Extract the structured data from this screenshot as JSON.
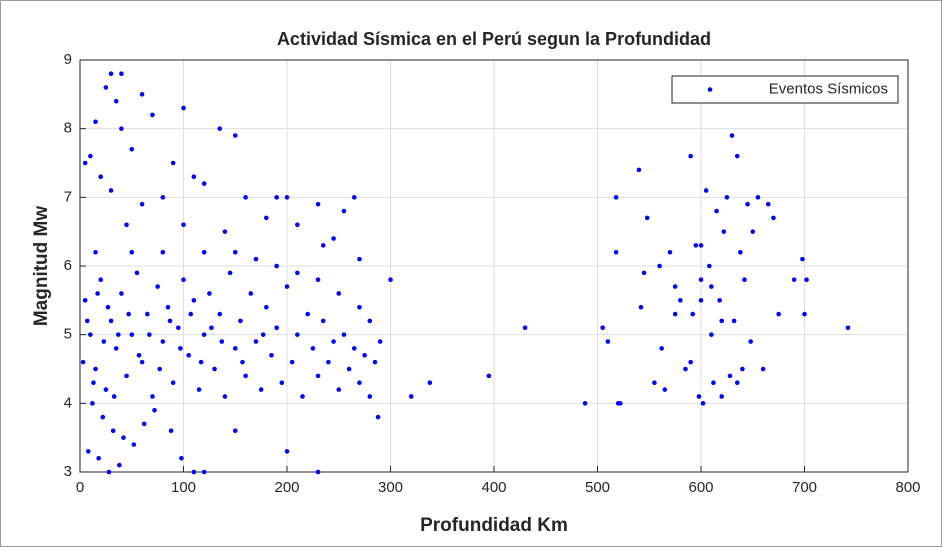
{
  "chart_data": {
    "type": "scatter",
    "title": "Actividad Sísmica en el Perú segun la Profundidad",
    "xlabel": "Profundidad Km",
    "ylabel": "Magnitud Mw",
    "xlim": [
      0,
      800
    ],
    "xticks": [
      0,
      100,
      200,
      300,
      400,
      500,
      600,
      700,
      800
    ],
    "ylim": [
      3,
      9
    ],
    "yticks": [
      3,
      4,
      5,
      6,
      7,
      8,
      9
    ],
    "grid": true,
    "legend": "northeast",
    "series": [
      {
        "name": "Eventos Sísmicos",
        "color": "#0000ff",
        "x": [
          30,
          40,
          25,
          35,
          60,
          100,
          15,
          40,
          135,
          150,
          10,
          50,
          70,
          90,
          120,
          5,
          20,
          80,
          110,
          160,
          190,
          200,
          265,
          255,
          230,
          180,
          140,
          60,
          30,
          45,
          100,
          210,
          245,
          235,
          270,
          300,
          15,
          50,
          80,
          120,
          150,
          170,
          190,
          210,
          230,
          250,
          270,
          280,
          290,
          285,
          5,
          10,
          15,
          20,
          25,
          30,
          35,
          40,
          45,
          50,
          55,
          60,
          65,
          70,
          75,
          80,
          85,
          90,
          95,
          100,
          105,
          110,
          115,
          120,
          125,
          130,
          135,
          140,
          145,
          150,
          155,
          160,
          165,
          170,
          175,
          180,
          185,
          190,
          195,
          200,
          205,
          210,
          215,
          220,
          225,
          230,
          235,
          240,
          245,
          250,
          255,
          260,
          265,
          270,
          275,
          280,
          12,
          22,
          32,
          42,
          8,
          18,
          28,
          38,
          52,
          62,
          72,
          88,
          98,
          110,
          120,
          150,
          200,
          230,
          288,
          320,
          338,
          395,
          430,
          488,
          3,
          7,
          13,
          17,
          23,
          27,
          33,
          37,
          47,
          57,
          67,
          77,
          87,
          97,
          107,
          117,
          127,
          137,
          157,
          177,
          505,
          510,
          518,
          518,
          520,
          522,
          540,
          542,
          545,
          548,
          555,
          560,
          562,
          565,
          570,
          575,
          580,
          585,
          590,
          592,
          595,
          598,
          600,
          602,
          605,
          608,
          610,
          612,
          615,
          618,
          620,
          622,
          625,
          628,
          630,
          632,
          635,
          638,
          640,
          642,
          645,
          648,
          650,
          655,
          660,
          665,
          670,
          675,
          690,
          698,
          700,
          702,
          742,
          600,
          590,
          610,
          620,
          635,
          575,
          600
        ],
        "values": [
          8.8,
          8.8,
          8.6,
          8.4,
          8.5,
          8.3,
          8.1,
          8.0,
          8.0,
          7.9,
          7.6,
          7.7,
          8.2,
          7.5,
          7.2,
          7.5,
          7.3,
          7.0,
          7.3,
          7.0,
          7.0,
          7.0,
          7.0,
          6.8,
          6.9,
          6.7,
          6.5,
          6.9,
          7.1,
          6.6,
          6.6,
          6.6,
          6.4,
          6.3,
          6.1,
          5.8,
          6.2,
          6.2,
          6.2,
          6.2,
          6.2,
          6.1,
          6.0,
          5.9,
          5.8,
          5.6,
          5.4,
          5.2,
          4.9,
          4.6,
          5.5,
          5.0,
          4.5,
          5.8,
          4.2,
          5.2,
          4.8,
          5.6,
          4.4,
          5.0,
          5.9,
          4.6,
          5.3,
          4.1,
          5.7,
          4.9,
          5.4,
          4.3,
          5.1,
          5.8,
          4.7,
          5.5,
          4.2,
          5.0,
          5.6,
          4.5,
          5.3,
          4.1,
          5.9,
          4.8,
          5.2,
          4.4,
          5.6,
          4.9,
          4.2,
          5.4,
          4.7,
          5.1,
          4.3,
          5.7,
          4.6,
          5.0,
          4.1,
          5.3,
          4.8,
          4.4,
          5.2,
          4.6,
          4.9,
          4.2,
          5.0,
          4.5,
          4.8,
          4.3,
          4.7,
          4.1,
          4.0,
          3.8,
          3.6,
          3.5,
          3.3,
          3.2,
          3.0,
          3.1,
          3.4,
          3.7,
          3.9,
          3.6,
          3.2,
          3.0,
          3.0,
          3.6,
          3.3,
          3.0,
          3.8,
          4.1,
          4.3,
          4.4,
          5.1,
          4.0,
          4.6,
          5.2,
          4.3,
          5.6,
          4.9,
          5.4,
          4.1,
          5.0,
          5.3,
          4.7,
          5.0,
          4.5,
          5.2,
          4.8,
          5.3,
          4.6,
          5.1,
          4.9,
          4.6,
          5.0,
          5.1,
          4.9,
          6.2,
          7.0,
          4.0,
          4.0,
          7.4,
          5.4,
          5.9,
          6.7,
          4.3,
          6.0,
          4.8,
          4.2,
          6.2,
          5.7,
          5.5,
          4.5,
          7.6,
          5.3,
          6.3,
          4.1,
          5.8,
          4.0,
          7.1,
          6.0,
          5.0,
          4.3,
          6.8,
          5.5,
          4.1,
          6.5,
          7.0,
          4.4,
          7.9,
          5.2,
          7.6,
          6.2,
          4.5,
          5.8,
          6.9,
          4.9,
          6.5,
          7.0,
          4.5,
          6.9,
          6.7,
          5.3,
          5.8,
          6.1,
          5.3,
          5.8,
          5.1,
          5.5,
          4.6,
          5.7,
          5.2,
          4.3,
          5.3,
          6.3
        ]
      }
    ]
  }
}
